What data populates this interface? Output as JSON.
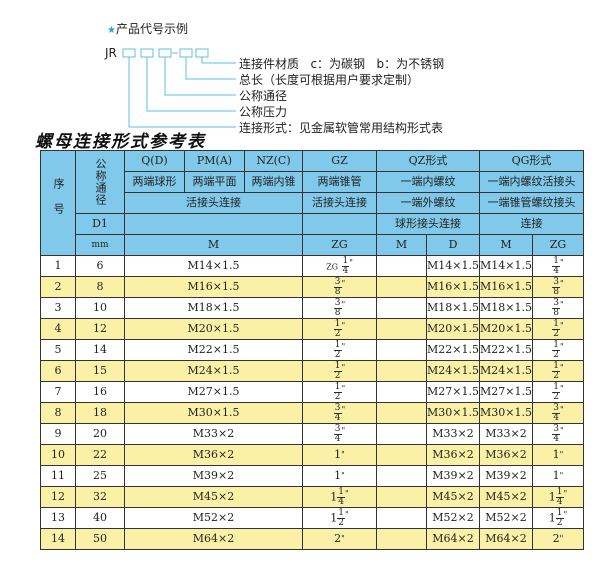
{
  "example": {
    "title": "产品代号示例",
    "code_prefix": "JR",
    "labels": [
      "连接件材质   c：为碳钢   b：为不锈钢",
      "总长（长度可根据用户要求定制）",
      "公称通径",
      "公称压力",
      "连接形式：见金属软管常用结构形式表"
    ],
    "accent": "#29a3d6"
  },
  "table_title": "螺母连接形式参考表",
  "header": {
    "seq": "序号",
    "nominal": "公称通径",
    "types": [
      "Q(D)",
      "PM(A)",
      "NZ(C)",
      "GZ",
      "QZ形式",
      "QG形式"
    ],
    "ends": [
      "两端球形",
      "两端平面",
      "两端内锥",
      "两端锥管",
      "一端内螺纹",
      "一端内螺纹活接头"
    ],
    "conn": [
      "活接头连接",
      "活接头连接",
      "一端外螺纹",
      "一端锥管螺纹接头"
    ],
    "d1": "D1",
    "qz_note": "球形接头连接",
    "qg_note": "连接",
    "mm": "mm",
    "units": [
      "M",
      "ZG",
      "M",
      "D",
      "M",
      "ZG"
    ]
  },
  "colors": {
    "header": "#80c9ea",
    "highlight": "#fbf1a6"
  },
  "rows": [
    {
      "no": "1",
      "dn": "6",
      "m": "M14×1.5",
      "zg": {
        "pre": "ZG",
        "w": "",
        "n": "1",
        "d": "4"
      },
      "qzd": "M14×1.5",
      "qgm": "M14×1.5",
      "qgzg": {
        "w": "",
        "n": "1",
        "d": "4"
      }
    },
    {
      "no": "2",
      "dn": "8",
      "m": "M16×1.5",
      "zg": {
        "w": "",
        "n": "3",
        "d": "8"
      },
      "qzd": "M16×1.5",
      "qgm": "M16×1.5",
      "qgzg": {
        "w": "",
        "n": "3",
        "d": "8"
      }
    },
    {
      "no": "3",
      "dn": "10",
      "m": "M18×1.5",
      "zg": {
        "w": "",
        "n": "3",
        "d": "8"
      },
      "qzd": "M18×1.5",
      "qgm": "M18×1.5",
      "qgzg": {
        "w": "",
        "n": "3",
        "d": "8"
      }
    },
    {
      "no": "4",
      "dn": "12",
      "m": "M20×1.5",
      "zg": {
        "w": "",
        "n": "1",
        "d": "2"
      },
      "qzd": "M20×1.5",
      "qgm": "M20×1.5",
      "qgzg": {
        "w": "",
        "n": "1",
        "d": "2"
      }
    },
    {
      "no": "5",
      "dn": "14",
      "m": "M22×1.5",
      "zg": {
        "w": "",
        "n": "1",
        "d": "2"
      },
      "qzd": "M22×1.5",
      "qgm": "M22×1.5",
      "qgzg": {
        "w": "",
        "n": "1",
        "d": "2"
      }
    },
    {
      "no": "6",
      "dn": "15",
      "m": "M24×1.5",
      "zg": {
        "w": "",
        "n": "1",
        "d": "2"
      },
      "qzd": "M24×1.5",
      "qgm": "M24×1.5",
      "qgzg": {
        "w": "",
        "n": "1",
        "d": "2"
      }
    },
    {
      "no": "7",
      "dn": "16",
      "m": "M27×1.5",
      "zg": {
        "w": "",
        "n": "1",
        "d": "2"
      },
      "qzd": "M27×1.5",
      "qgm": "M27×1.5",
      "qgzg": {
        "w": "",
        "n": "1",
        "d": "2"
      }
    },
    {
      "no": "8",
      "dn": "18",
      "m": "M30×1.5",
      "zg": {
        "w": "",
        "n": "3",
        "d": "4"
      },
      "qzd": "M30×1.5",
      "qgm": "M30×1.5",
      "qgzg": {
        "w": "",
        "n": "3",
        "d": "4"
      }
    },
    {
      "no": "9",
      "dn": "20",
      "m": "M33×2",
      "zg": {
        "w": "",
        "n": "3",
        "d": "4"
      },
      "qzd": "M33×2",
      "qgm": "M33×2",
      "qgzg": {
        "w": "",
        "n": "3",
        "d": "4"
      }
    },
    {
      "no": "10",
      "dn": "22",
      "m": "M36×2",
      "zg": {
        "w": "1"
      },
      "qzd": "M36×2",
      "qgm": "M36×2",
      "qgzg": {
        "w": "1"
      }
    },
    {
      "no": "11",
      "dn": "25",
      "m": "M39×2",
      "zg": {
        "w": "1"
      },
      "qzd": "M39×2",
      "qgm": "M39×2",
      "qgzg": {
        "w": "1"
      }
    },
    {
      "no": "12",
      "dn": "32",
      "m": "M45×2",
      "zg": {
        "w": "1",
        "n": "1",
        "d": "4"
      },
      "qzd": "M45×2",
      "qgm": "M45×2",
      "qgzg": {
        "w": "1",
        "n": "1",
        "d": "4"
      }
    },
    {
      "no": "13",
      "dn": "40",
      "m": "M52×2",
      "zg": {
        "w": "1",
        "n": "1",
        "d": "2"
      },
      "qzd": "M52×2",
      "qgm": "M52×2",
      "qgzg": {
        "w": "1",
        "n": "1",
        "d": "2"
      }
    },
    {
      "no": "14",
      "dn": "50",
      "m": "M64×2",
      "zg": {
        "w": "2"
      },
      "qzd": "M64×2",
      "qgm": "M64×2",
      "qgzg": {
        "w": "2"
      }
    }
  ],
  "inch_mark": "\""
}
